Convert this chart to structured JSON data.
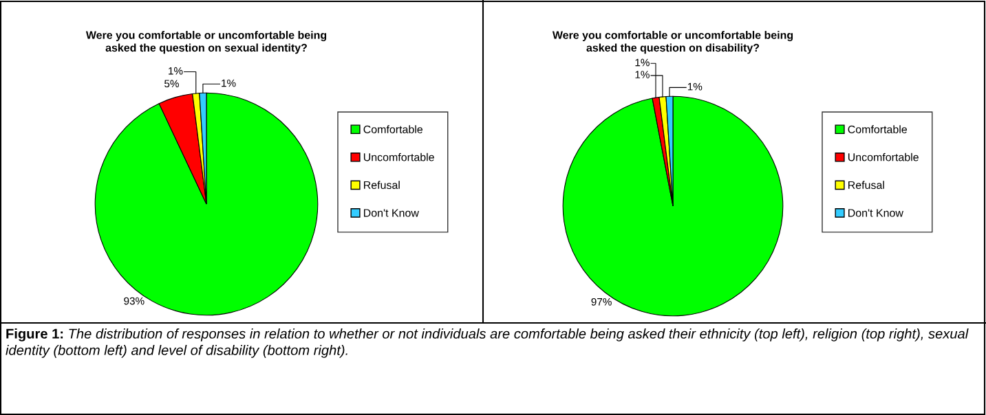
{
  "chart_data": [
    {
      "type": "pie",
      "title": "Were you comfortable or uncomfortable being asked the question on sexual identity?",
      "categories": [
        "Comfortable",
        "Uncomfortable",
        "Refusal",
        "Don't Know"
      ],
      "values": [
        93,
        5,
        1,
        1
      ],
      "value_labels": [
        "93%",
        "5%",
        "1%",
        "1%"
      ],
      "colors": [
        "#00ff00",
        "#ff0000",
        "#ffff00",
        "#33ccff"
      ],
      "legend": "right",
      "annotations": [
        "Figure 1:",
        "The distribution of responses in relation to whether or not individuals are comfortable being asked their ethnicity (top left), religion (top right), sexual identity (bottom left) and level of disability (bottom right)."
      ]
    },
    {
      "type": "pie",
      "title": "Were you comfortable or uncomfortable being asked the question on disability?",
      "categories": [
        "Comfortable",
        "Uncomfortable",
        "Refusal",
        "Don't Know"
      ],
      "values": [
        97,
        1,
        1,
        1
      ],
      "value_labels": [
        "97%",
        "1%",
        "1%",
        "1%"
      ],
      "colors": [
        "#00ff00",
        "#ff0000",
        "#ffff00",
        "#33ccff"
      ],
      "legend": "right"
    }
  ]
}
